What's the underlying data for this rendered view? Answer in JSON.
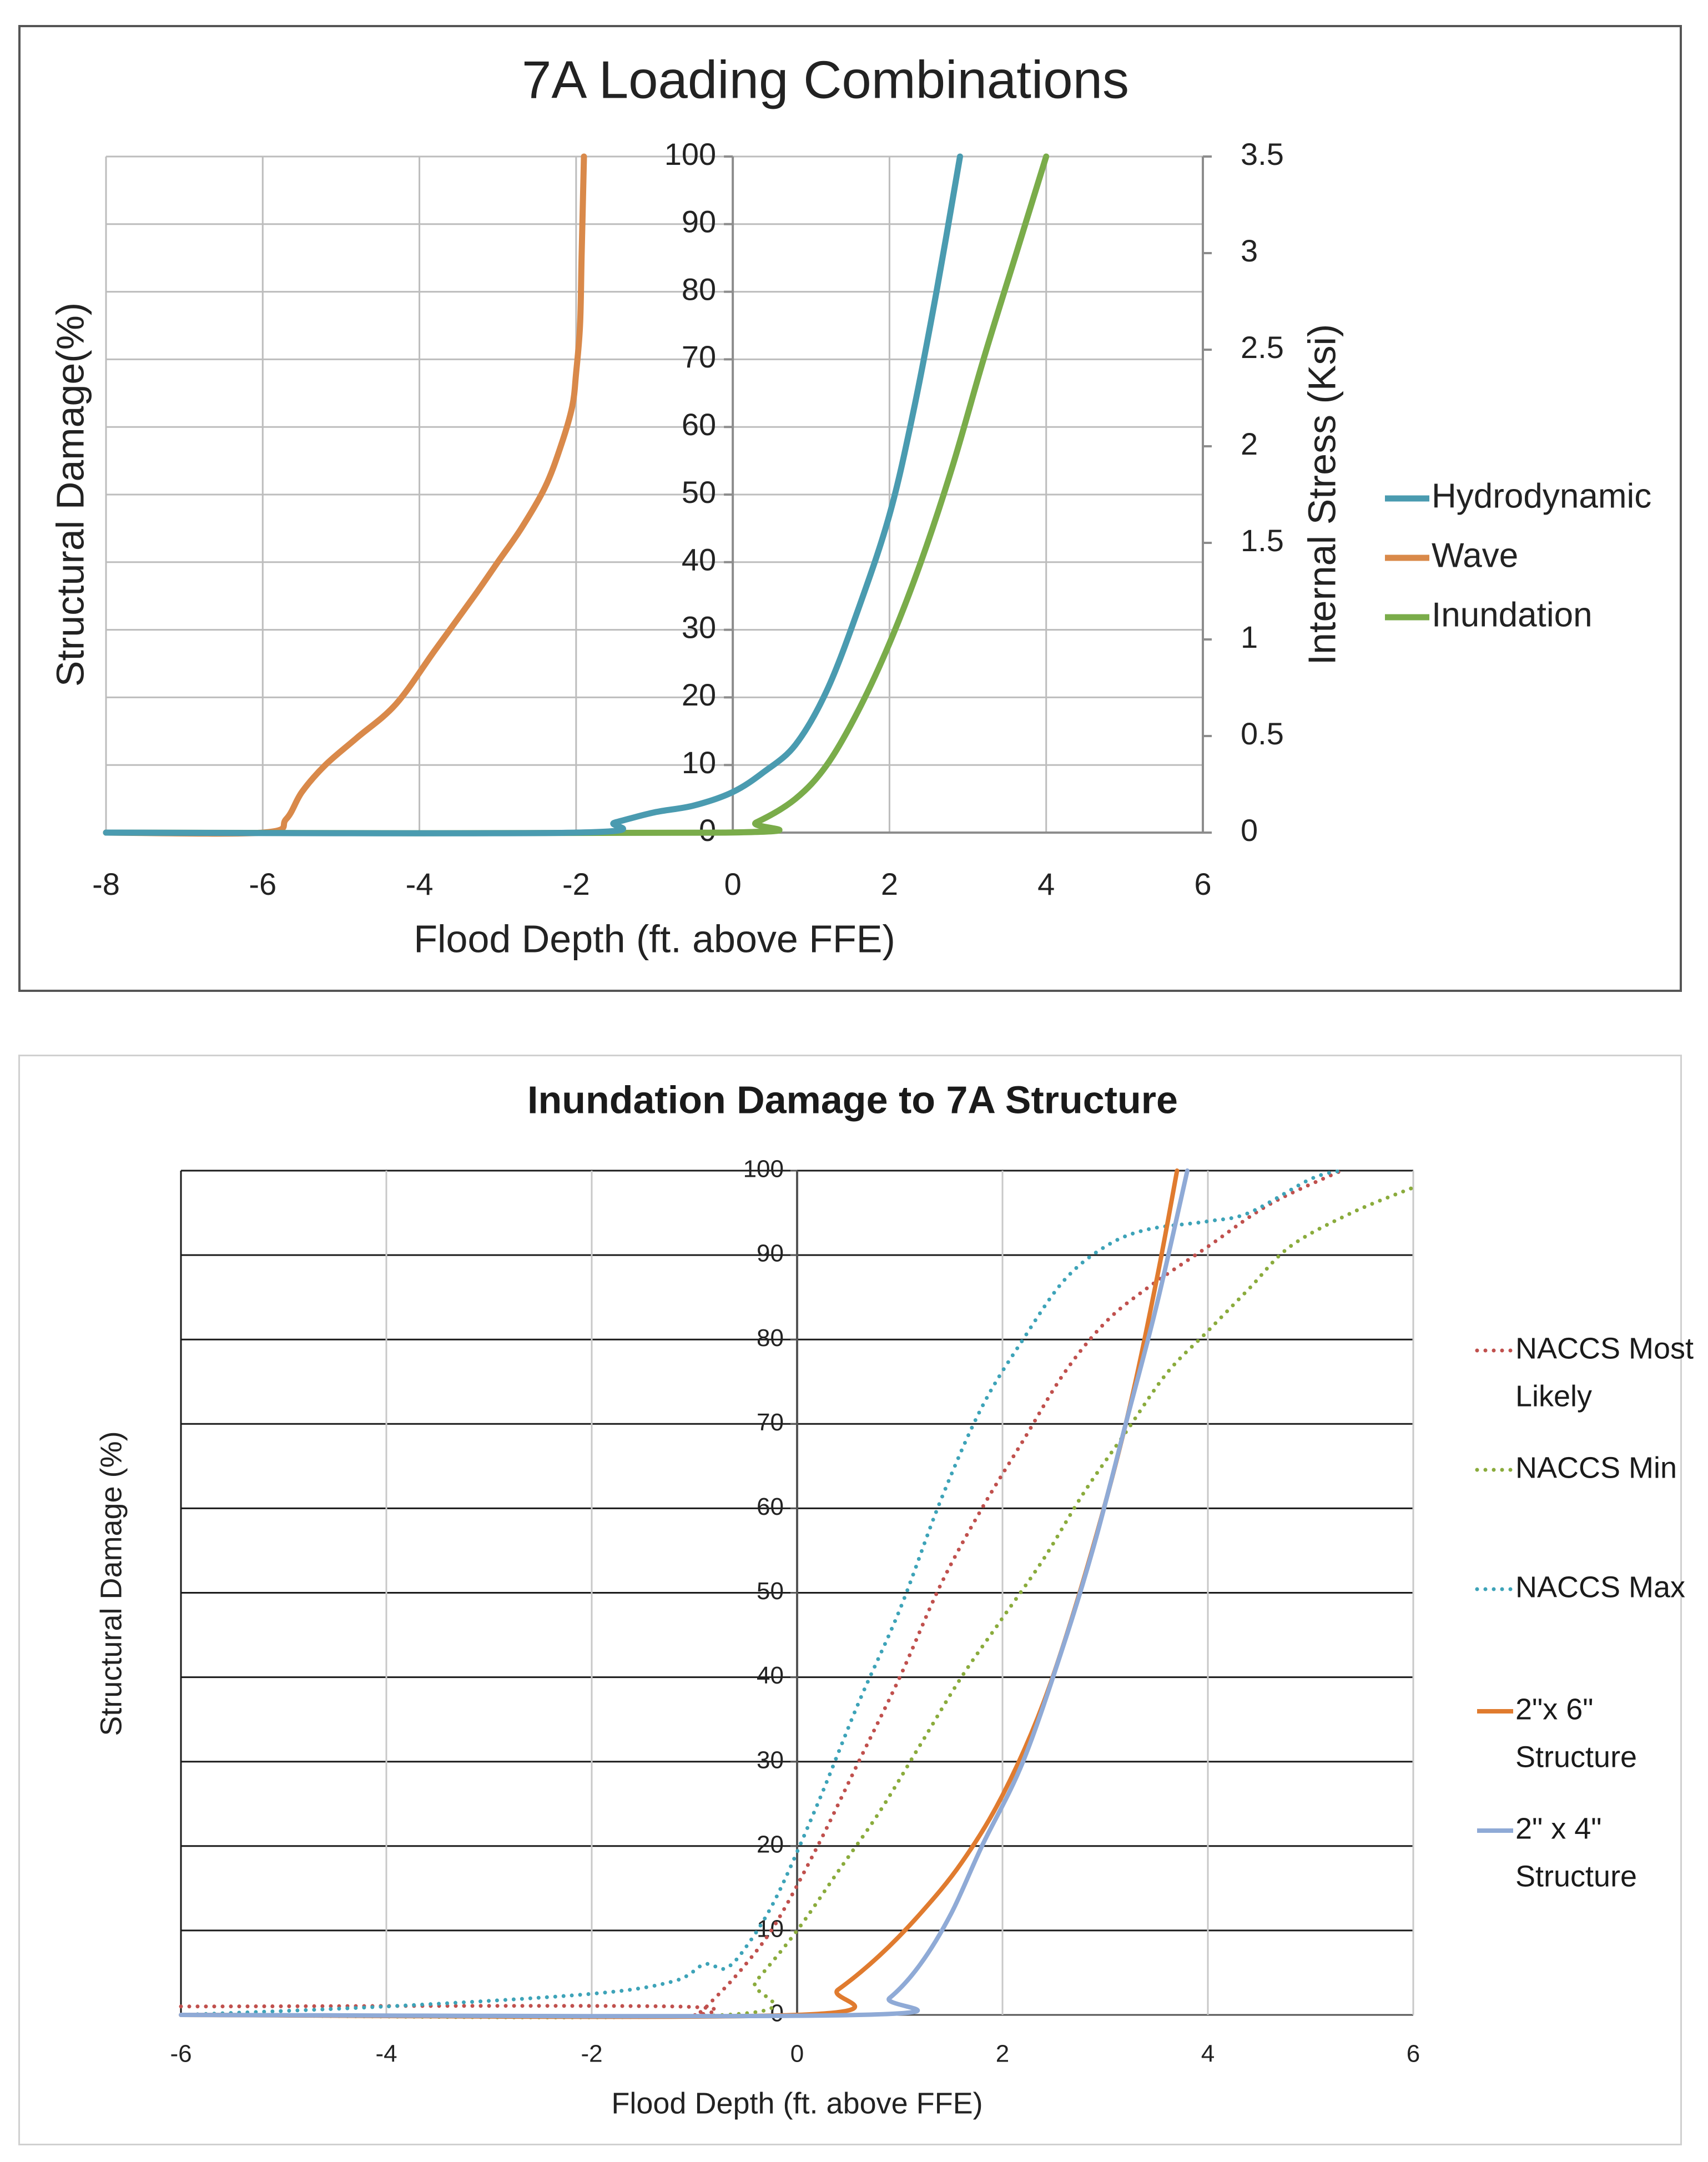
{
  "chart_data": [
    {
      "type": "line",
      "title": "7A Loading Combinations",
      "xlabel": "Flood Depth (ft. above FFE)",
      "ylabel": "Structural Damage(%)",
      "y2label": "Internal Stress (Ksi)",
      "xlim": [
        -8,
        6
      ],
      "ylim": [
        0,
        100
      ],
      "y2lim": [
        0,
        3.5
      ],
      "x_ticks": [
        -8,
        -6,
        -4,
        -2,
        0,
        2,
        4,
        6
      ],
      "x_tick_labels": [
        "-8",
        "-6",
        "-4",
        "-2",
        "0",
        "2",
        "4",
        "6"
      ],
      "y_ticks": [
        0,
        10,
        20,
        30,
        40,
        50,
        60,
        70,
        80,
        90,
        100
      ],
      "y_tick_labels": [
        "0",
        "10",
        "20",
        "30",
        "40",
        "50",
        "60",
        "70",
        "80",
        "90",
        "100"
      ],
      "y2_ticks": [
        0,
        0.5,
        1,
        1.5,
        2,
        2.5,
        3,
        3.5
      ],
      "y2_tick_labels": [
        "0",
        "0.5",
        "1",
        "1.5",
        "2",
        "2.5",
        "3",
        "3.5"
      ],
      "grid": true,
      "legend_position": "right",
      "series": [
        {
          "name": "Hydrodynamic",
          "color": "#4a9bb0",
          "style": "solid",
          "points": [
            [
              -8,
              0
            ],
            [
              -2,
              0
            ],
            [
              -1.5,
              1.5
            ],
            [
              -1,
              3
            ],
            [
              -0.5,
              4
            ],
            [
              0,
              6
            ],
            [
              0.4,
              9
            ],
            [
              0.8,
              13
            ],
            [
              1.2,
              21
            ],
            [
              1.6,
              33
            ],
            [
              2,
              47
            ],
            [
              2.3,
              62
            ],
            [
              2.6,
              80
            ],
            [
              2.9,
              100
            ]
          ]
        },
        {
          "name": "Wave",
          "color": "#d9894a",
          "style": "solid",
          "points": [
            [
              -8,
              0
            ],
            [
              -6,
              0
            ],
            [
              -5.7,
              2
            ],
            [
              -5.5,
              6
            ],
            [
              -5.2,
              10
            ],
            [
              -4.8,
              14
            ],
            [
              -4.3,
              19
            ],
            [
              -3.8,
              27
            ],
            [
              -3.3,
              35
            ],
            [
              -3,
              40
            ],
            [
              -2.7,
              45
            ],
            [
              -2.4,
              51
            ],
            [
              -2.2,
              57
            ],
            [
              -2.05,
              63
            ],
            [
              -2,
              68
            ],
            [
              -1.95,
              75
            ],
            [
              -1.93,
              85
            ],
            [
              -1.9,
              100
            ]
          ]
        },
        {
          "name": "Inundation",
          "color": "#7aac4a",
          "style": "solid",
          "points": [
            [
              -8,
              0
            ],
            [
              -0.1,
              0
            ],
            [
              0.3,
              1.5
            ],
            [
              0.8,
              5
            ],
            [
              1.2,
              10
            ],
            [
              1.6,
              18
            ],
            [
              2,
              28
            ],
            [
              2.4,
              40
            ],
            [
              2.8,
              54
            ],
            [
              3.2,
              70
            ],
            [
              3.6,
              85
            ],
            [
              4,
              100
            ]
          ]
        }
      ]
    },
    {
      "type": "line",
      "title": "Inundation Damage to 7A Structure",
      "xlabel": "Flood Depth (ft. above FFE)",
      "ylabel": "Structural Damage (%)",
      "xlim": [
        -6,
        6
      ],
      "ylim": [
        0,
        100
      ],
      "x_ticks": [
        -6,
        -4,
        -2,
        0,
        2,
        4,
        6
      ],
      "x_tick_labels": [
        "-6",
        "-4",
        "-2",
        "0",
        "2",
        "4",
        "6"
      ],
      "y_ticks": [
        0,
        10,
        20,
        30,
        40,
        50,
        60,
        70,
        80,
        90,
        100
      ],
      "y_tick_labels": [
        "0",
        "10",
        "20",
        "30",
        "40",
        "50",
        "60",
        "70",
        "80",
        "90",
        "100"
      ],
      "grid": true,
      "legend_position": "right",
      "series": [
        {
          "name": "NACCS Most Likely",
          "legend_lines": [
            "NACCS Most",
            "Likely"
          ],
          "color": "#c0504d",
          "style": "dotted",
          "points": [
            [
              -6,
              1
            ],
            [
              -1.2,
              1
            ],
            [
              -1,
              0
            ],
            [
              -0.8,
              2
            ],
            [
              -0.5,
              6
            ],
            [
              -0.2,
              11
            ],
            [
              0.2,
              20
            ],
            [
              0.6,
              30
            ],
            [
              1,
              40
            ],
            [
              1.4,
              51
            ],
            [
              1.8,
              60
            ],
            [
              2.2,
              68
            ],
            [
              2.6,
              76
            ],
            [
              3,
              82
            ],
            [
              3.4,
              86
            ],
            [
              4,
              91
            ],
            [
              4.6,
              96
            ],
            [
              5.3,
              100
            ]
          ]
        },
        {
          "name": "NACCS Min",
          "legend_lines": [
            "NACCS Min"
          ],
          "color": "#8aab3c",
          "style": "dotted",
          "points": [
            [
              -6,
              0
            ],
            [
              -0.7,
              0
            ],
            [
              -0.4,
              4
            ],
            [
              0,
              10
            ],
            [
              0.4,
              17
            ],
            [
              0.8,
              24
            ],
            [
              1.2,
              32
            ],
            [
              1.6,
              40
            ],
            [
              2,
              47
            ],
            [
              2.4,
              54
            ],
            [
              2.8,
              62
            ],
            [
              3.2,
              69
            ],
            [
              3.6,
              76
            ],
            [
              4,
              81
            ],
            [
              4.4,
              86
            ],
            [
              4.8,
              91
            ],
            [
              5.4,
              95
            ],
            [
              6,
              98
            ]
          ]
        },
        {
          "name": "NACCS Max",
          "legend_lines": [
            "NACCS Max"
          ],
          "color": "#3da3b8",
          "style": "dotted",
          "points": [
            [
              -6,
              0
            ],
            [
              -4,
              1
            ],
            [
              -2,
              2.5
            ],
            [
              -1.2,
              4
            ],
            [
              -0.9,
              6
            ],
            [
              -0.7,
              5.5
            ],
            [
              -0.5,
              8
            ],
            [
              -0.2,
              14
            ],
            [
              0.2,
              25
            ],
            [
              0.6,
              37
            ],
            [
              1,
              48
            ],
            [
              1.4,
              61
            ],
            [
              1.8,
              72
            ],
            [
              2.2,
              80
            ],
            [
              2.6,
              87
            ],
            [
              3,
              91
            ],
            [
              3.4,
              93
            ],
            [
              4,
              94
            ],
            [
              4.4,
              95
            ],
            [
              5,
              99
            ],
            [
              5.3,
              100
            ]
          ]
        },
        {
          "name": "2\"x 6\" Structure",
          "legend_lines": [
            "2\"x 6\"",
            "Structure"
          ],
          "color": "#e07b2f",
          "style": "solid",
          "points": [
            [
              -6,
              0
            ],
            [
              0,
              0
            ],
            [
              0.4,
              3
            ],
            [
              0.8,
              7
            ],
            [
              1.2,
              12
            ],
            [
              1.6,
              18
            ],
            [
              2,
              26
            ],
            [
              2.4,
              37
            ],
            [
              2.8,
              52
            ],
            [
              3.2,
              70
            ],
            [
              3.5,
              87
            ],
            [
              3.7,
              100
            ]
          ]
        },
        {
          "name": "2\" x 4\" Structure",
          "legend_lines": [
            "2\" x 4\"",
            "Structure"
          ],
          "color": "#8faad6",
          "style": "solid",
          "points": [
            [
              -6,
              0
            ],
            [
              0.6,
              0
            ],
            [
              0.9,
              2
            ],
            [
              1.2,
              6
            ],
            [
              1.5,
              12
            ],
            [
              1.8,
              20
            ],
            [
              2.2,
              30
            ],
            [
              2.6,
              44
            ],
            [
              2.9,
              56
            ],
            [
              3.2,
              70
            ],
            [
              3.5,
              84
            ],
            [
              3.8,
              100
            ]
          ]
        }
      ]
    }
  ]
}
